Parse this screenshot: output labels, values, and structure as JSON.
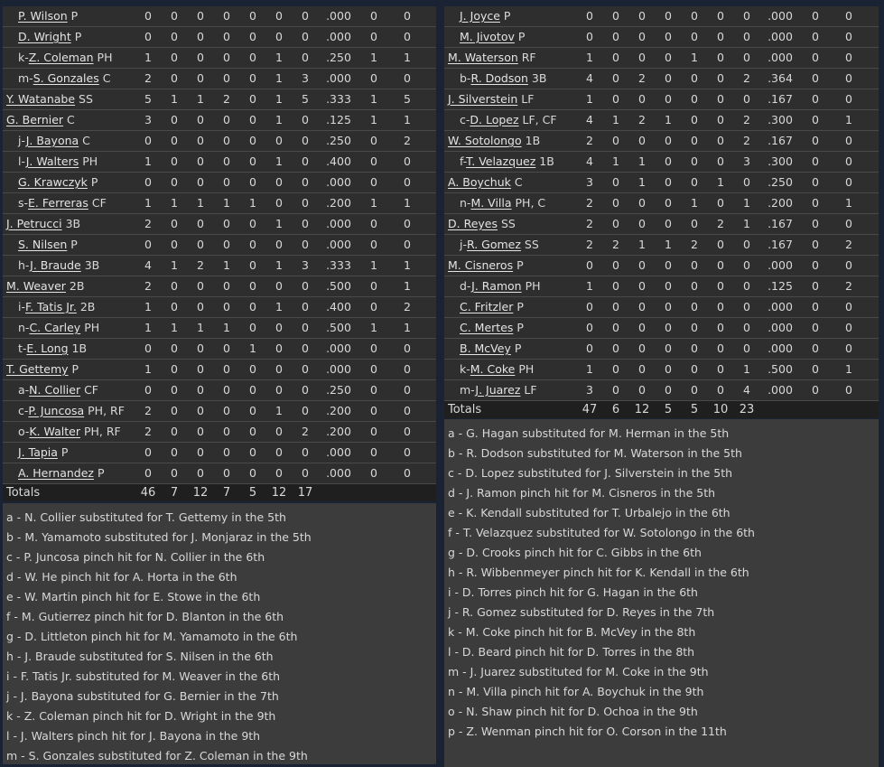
{
  "away": {
    "players": [
      {
        "prefix": "",
        "name": "P. Wilson",
        "pos": "P",
        "sub": true,
        "stats": [
          "0",
          "0",
          "0",
          "0",
          "0",
          "0",
          "0",
          ".000",
          "0",
          "0"
        ]
      },
      {
        "prefix": "",
        "name": "D. Wright",
        "pos": "P",
        "sub": true,
        "stats": [
          "0",
          "0",
          "0",
          "0",
          "0",
          "0",
          "0",
          ".000",
          "0",
          "0"
        ]
      },
      {
        "prefix": "k-",
        "name": "Z. Coleman",
        "pos": "PH",
        "sub": true,
        "stats": [
          "1",
          "0",
          "0",
          "0",
          "0",
          "1",
          "0",
          ".250",
          "1",
          "1"
        ]
      },
      {
        "prefix": "m-",
        "name": "S. Gonzales",
        "pos": "C",
        "sub": true,
        "stats": [
          "2",
          "0",
          "0",
          "0",
          "0",
          "1",
          "3",
          ".000",
          "0",
          "0"
        ]
      },
      {
        "prefix": "",
        "name": "Y. Watanabe",
        "pos": "SS",
        "sub": false,
        "stats": [
          "5",
          "1",
          "1",
          "2",
          "0",
          "1",
          "5",
          ".333",
          "1",
          "5"
        ]
      },
      {
        "prefix": "",
        "name": "G. Bernier",
        "pos": "C",
        "sub": false,
        "stats": [
          "3",
          "0",
          "0",
          "0",
          "0",
          "1",
          "0",
          ".125",
          "1",
          "1"
        ]
      },
      {
        "prefix": "j-",
        "name": "J. Bayona",
        "pos": "C",
        "sub": true,
        "stats": [
          "0",
          "0",
          "0",
          "0",
          "0",
          "0",
          "0",
          ".250",
          "0",
          "2"
        ]
      },
      {
        "prefix": "l-",
        "name": "J. Walters",
        "pos": "PH",
        "sub": true,
        "stats": [
          "1",
          "0",
          "0",
          "0",
          "0",
          "1",
          "0",
          ".400",
          "0",
          "0"
        ]
      },
      {
        "prefix": "",
        "name": "G. Krawczyk",
        "pos": "P",
        "sub": true,
        "stats": [
          "0",
          "0",
          "0",
          "0",
          "0",
          "0",
          "0",
          ".000",
          "0",
          "0"
        ]
      },
      {
        "prefix": "s-",
        "name": "E. Ferreras",
        "pos": "CF",
        "sub": true,
        "stats": [
          "1",
          "1",
          "1",
          "1",
          "1",
          "0",
          "0",
          ".200",
          "1",
          "1"
        ]
      },
      {
        "prefix": "",
        "name": "J. Petrucci",
        "pos": "3B",
        "sub": false,
        "stats": [
          "2",
          "0",
          "0",
          "0",
          "0",
          "1",
          "0",
          ".000",
          "0",
          "0"
        ]
      },
      {
        "prefix": "",
        "name": "S. Nilsen",
        "pos": "P",
        "sub": true,
        "stats": [
          "0",
          "0",
          "0",
          "0",
          "0",
          "0",
          "0",
          ".000",
          "0",
          "0"
        ]
      },
      {
        "prefix": "h-",
        "name": "J. Braude",
        "pos": "3B",
        "sub": true,
        "stats": [
          "4",
          "1",
          "2",
          "1",
          "0",
          "1",
          "3",
          ".333",
          "1",
          "1"
        ]
      },
      {
        "prefix": "",
        "name": "M. Weaver",
        "pos": "2B",
        "sub": false,
        "stats": [
          "2",
          "0",
          "0",
          "0",
          "0",
          "0",
          "0",
          ".500",
          "0",
          "1"
        ]
      },
      {
        "prefix": "i-",
        "name": "F. Tatis Jr.",
        "pos": "2B",
        "sub": true,
        "stats": [
          "1",
          "0",
          "0",
          "0",
          "0",
          "1",
          "0",
          ".400",
          "0",
          "2"
        ]
      },
      {
        "prefix": "n-",
        "name": "C. Carley",
        "pos": "PH",
        "sub": true,
        "stats": [
          "1",
          "1",
          "1",
          "1",
          "0",
          "0",
          "0",
          ".500",
          "1",
          "1"
        ]
      },
      {
        "prefix": "t-",
        "name": "E. Long",
        "pos": "1B",
        "sub": true,
        "stats": [
          "0",
          "0",
          "0",
          "0",
          "1",
          "0",
          "0",
          ".000",
          "0",
          "0"
        ]
      },
      {
        "prefix": "",
        "name": "T. Gettemy",
        "pos": "P",
        "sub": false,
        "stats": [
          "1",
          "0",
          "0",
          "0",
          "0",
          "0",
          "0",
          ".000",
          "0",
          "0"
        ]
      },
      {
        "prefix": "a-",
        "name": "N. Collier",
        "pos": "CF",
        "sub": true,
        "stats": [
          "0",
          "0",
          "0",
          "0",
          "0",
          "0",
          "0",
          ".250",
          "0",
          "0"
        ]
      },
      {
        "prefix": "c-",
        "name": "P. Juncosa",
        "pos": "PH, RF",
        "sub": true,
        "stats": [
          "2",
          "0",
          "0",
          "0",
          "0",
          "1",
          "0",
          ".200",
          "0",
          "0"
        ]
      },
      {
        "prefix": "o-",
        "name": "K. Walter",
        "pos": "PH, RF",
        "sub": true,
        "stats": [
          "2",
          "0",
          "0",
          "0",
          "0",
          "0",
          "2",
          ".200",
          "0",
          "0"
        ]
      },
      {
        "prefix": "",
        "name": "J. Tapia",
        "pos": "P",
        "sub": true,
        "stats": [
          "0",
          "0",
          "0",
          "0",
          "0",
          "0",
          "0",
          ".000",
          "0",
          "0"
        ]
      },
      {
        "prefix": "",
        "name": "A. Hernandez",
        "pos": "P",
        "sub": true,
        "stats": [
          "0",
          "0",
          "0",
          "0",
          "0",
          "0",
          "0",
          ".000",
          "0",
          "0"
        ]
      }
    ],
    "totals": {
      "label": "Totals",
      "stats": [
        "46",
        "7",
        "12",
        "7",
        "5",
        "12",
        "17",
        "",
        "",
        ""
      ]
    },
    "notes": [
      "a - N. Collier substituted for T. Gettemy in the 5th",
      "b - M. Yamamoto substituted for J. Monjaraz in the 5th",
      "c - P. Juncosa pinch hit for N. Collier in the 6th",
      "d - W. He pinch hit for A. Horta in the 6th",
      "e - W. Martin pinch hit for E. Stowe in the 6th",
      "f - M. Gutierrez pinch hit for D. Blanton in the 6th",
      "g - D. Littleton pinch hit for M. Yamamoto in the 6th",
      "h - J. Braude substituted for S. Nilsen in the 6th",
      "i - F. Tatis Jr. substituted for M. Weaver in the 6th",
      "j - J. Bayona substituted for G. Bernier in the 7th",
      "k - Z. Coleman pinch hit for D. Wright in the 9th",
      "l - J. Walters pinch hit for J. Bayona in the 9th",
      "m - S. Gonzales substituted for Z. Coleman in the 9th"
    ]
  },
  "home": {
    "players": [
      {
        "prefix": "",
        "name": "J. Joyce",
        "pos": "P",
        "sub": true,
        "stats": [
          "0",
          "0",
          "0",
          "0",
          "0",
          "0",
          "0",
          ".000",
          "0",
          "0"
        ]
      },
      {
        "prefix": "",
        "name": "M. Jivotov",
        "pos": "P",
        "sub": true,
        "stats": [
          "0",
          "0",
          "0",
          "0",
          "0",
          "0",
          "0",
          ".000",
          "0",
          "0"
        ]
      },
      {
        "prefix": "",
        "name": "M. Waterson",
        "pos": "RF",
        "sub": false,
        "stats": [
          "1",
          "0",
          "0",
          "0",
          "1",
          "0",
          "0",
          ".000",
          "0",
          "0"
        ]
      },
      {
        "prefix": "b-",
        "name": "R. Dodson",
        "pos": "3B",
        "sub": true,
        "stats": [
          "4",
          "0",
          "2",
          "0",
          "0",
          "0",
          "2",
          ".364",
          "0",
          "0"
        ]
      },
      {
        "prefix": "",
        "name": "J. Silverstein",
        "pos": "LF",
        "sub": false,
        "stats": [
          "1",
          "0",
          "0",
          "0",
          "0",
          "0",
          "0",
          ".167",
          "0",
          "0"
        ]
      },
      {
        "prefix": "c-",
        "name": "D. Lopez",
        "pos": "LF, CF",
        "sub": true,
        "stats": [
          "4",
          "1",
          "2",
          "1",
          "0",
          "0",
          "2",
          ".300",
          "0",
          "1"
        ]
      },
      {
        "prefix": "",
        "name": "W. Sotolongo",
        "pos": "1B",
        "sub": false,
        "stats": [
          "2",
          "0",
          "0",
          "0",
          "0",
          "0",
          "2",
          ".167",
          "0",
          "0"
        ]
      },
      {
        "prefix": "f-",
        "name": "T. Velazquez",
        "pos": "1B",
        "sub": true,
        "stats": [
          "4",
          "1",
          "1",
          "0",
          "0",
          "0",
          "3",
          ".300",
          "0",
          "0"
        ]
      },
      {
        "prefix": "",
        "name": "A. Boychuk",
        "pos": "C",
        "sub": false,
        "stats": [
          "3",
          "0",
          "1",
          "0",
          "0",
          "1",
          "0",
          ".250",
          "0",
          "0"
        ]
      },
      {
        "prefix": "n-",
        "name": "M. Villa",
        "pos": "PH, C",
        "sub": true,
        "stats": [
          "2",
          "0",
          "0",
          "0",
          "1",
          "0",
          "1",
          ".200",
          "0",
          "1"
        ]
      },
      {
        "prefix": "",
        "name": "D. Reyes",
        "pos": "SS",
        "sub": false,
        "stats": [
          "2",
          "0",
          "0",
          "0",
          "0",
          "2",
          "1",
          ".167",
          "0",
          "0"
        ]
      },
      {
        "prefix": "j-",
        "name": "R. Gomez",
        "pos": "SS",
        "sub": true,
        "stats": [
          "2",
          "2",
          "1",
          "1",
          "2",
          "0",
          "0",
          ".167",
          "0",
          "2"
        ]
      },
      {
        "prefix": "",
        "name": "M. Cisneros",
        "pos": "P",
        "sub": false,
        "stats": [
          "0",
          "0",
          "0",
          "0",
          "0",
          "0",
          "0",
          ".000",
          "0",
          "0"
        ]
      },
      {
        "prefix": "d-",
        "name": "J. Ramon",
        "pos": "PH",
        "sub": true,
        "stats": [
          "1",
          "0",
          "0",
          "0",
          "0",
          "0",
          "0",
          ".125",
          "0",
          "2"
        ]
      },
      {
        "prefix": "",
        "name": "C. Fritzler",
        "pos": "P",
        "sub": true,
        "stats": [
          "0",
          "0",
          "0",
          "0",
          "0",
          "0",
          "0",
          ".000",
          "0",
          "0"
        ]
      },
      {
        "prefix": "",
        "name": "C. Mertes",
        "pos": "P",
        "sub": true,
        "stats": [
          "0",
          "0",
          "0",
          "0",
          "0",
          "0",
          "0",
          ".000",
          "0",
          "0"
        ]
      },
      {
        "prefix": "",
        "name": "B. McVey",
        "pos": "P",
        "sub": true,
        "stats": [
          "0",
          "0",
          "0",
          "0",
          "0",
          "0",
          "0",
          ".000",
          "0",
          "0"
        ]
      },
      {
        "prefix": "k-",
        "name": "M. Coke",
        "pos": "PH",
        "sub": true,
        "stats": [
          "1",
          "0",
          "0",
          "0",
          "0",
          "0",
          "1",
          ".500",
          "0",
          "1"
        ]
      },
      {
        "prefix": "m-",
        "name": "J. Juarez",
        "pos": "LF",
        "sub": true,
        "stats": [
          "3",
          "0",
          "0",
          "0",
          "0",
          "0",
          "4",
          ".000",
          "0",
          "0"
        ]
      }
    ],
    "totals": {
      "label": "Totals",
      "stats": [
        "47",
        "6",
        "12",
        "5",
        "5",
        "10",
        "23",
        "",
        "",
        ""
      ]
    },
    "notes": [
      "a - G. Hagan substituted for M. Herman in the 5th",
      "b - R. Dodson substituted for M. Waterson in the 5th",
      "c - D. Lopez substituted for J. Silverstein in the 5th",
      "d - J. Ramon pinch hit for M. Cisneros in the 5th",
      "e - K. Kendall substituted for T. Urbalejo in the 6th",
      "f - T. Velazquez substituted for W. Sotolongo in the 6th",
      "g - D. Crooks pinch hit for C. Gibbs in the 6th",
      "h - R. Wibbenmeyer pinch hit for K. Kendall in the 6th",
      "i - D. Torres pinch hit for G. Hagan in the 6th",
      "j - R. Gomez substituted for D. Reyes in the 7th",
      "k - M. Coke pinch hit for B. McVey in the 8th",
      "l - D. Beard pinch hit for D. Torres in the 8th",
      "m - J. Juarez substituted for M. Coke in the 9th",
      "n - M. Villa pinch hit for A. Boychuk in the 9th",
      "o - N. Shaw pinch hit for D. Ochoa in the 9th",
      "p - Z. Wenman pinch hit for O. Corson in the 11th"
    ]
  }
}
